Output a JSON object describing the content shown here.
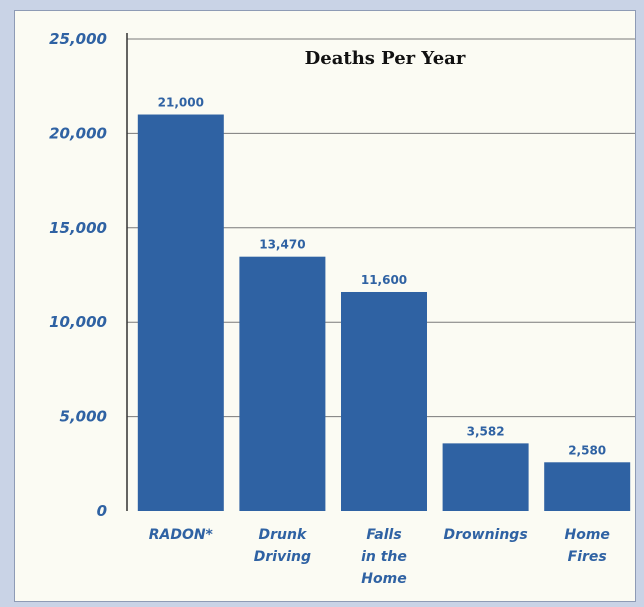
{
  "chart_data": {
    "type": "bar",
    "title": "Deaths Per Year",
    "categories": [
      [
        "RADON*"
      ],
      [
        "Drunk",
        "Driving"
      ],
      [
        "Falls",
        "in the",
        "Home"
      ],
      [
        "Drownings"
      ],
      [
        "Home",
        "Fires"
      ]
    ],
    "values": [
      21000,
      13470,
      11600,
      3582,
      2580
    ],
    "data_labels": [
      "21,000",
      "13,470",
      "11,600",
      "3,582",
      "2,580"
    ],
    "yticks": [
      0,
      5000,
      10000,
      15000,
      20000,
      25000
    ],
    "ytick_labels": [
      "0",
      "5,000",
      "10,000",
      "15,000",
      "20,000",
      "25,000"
    ],
    "ylim": [
      0,
      25000
    ],
    "grid": true,
    "colors": {
      "bar": "#2f62a3",
      "label": "#2f62a3",
      "grid": "#7a7a7a",
      "background": "#fbfbf3"
    }
  }
}
